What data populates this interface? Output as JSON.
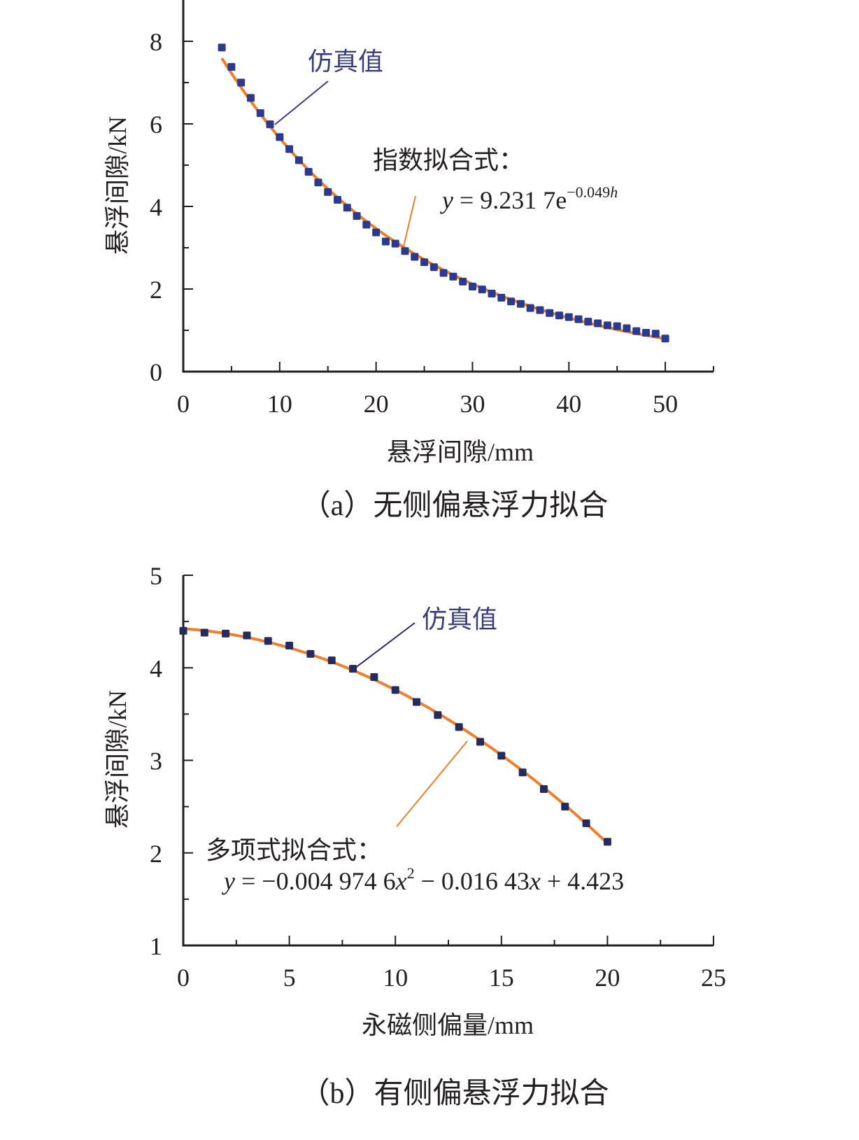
{
  "colors": {
    "marker": "#2b3a8c",
    "marker_b": "#262b5e",
    "fit_line": "#f07f2d",
    "axis": "#231f20",
    "annotation_text": "#3a3f7a"
  },
  "chart_data": [
    {
      "id": "a",
      "type": "scatter",
      "caption": "（a）无侧偏悬浮力拟合",
      "xlabel": "悬浮间隙/mm",
      "ylabel": "悬浮间隙/kN",
      "xlim": [
        0,
        55
      ],
      "ylim": [
        0,
        9
      ],
      "xticks": [
        0,
        10,
        20,
        30,
        40,
        50
      ],
      "xticks_minor": [
        5,
        15,
        25,
        35,
        45,
        55
      ],
      "yticks": [
        0,
        2,
        4,
        6,
        8
      ],
      "yticks_minor": [
        1,
        3,
        5,
        7
      ],
      "grid": false,
      "series": [
        {
          "name": "仿真值",
          "kind": "markers",
          "x": [
            4,
            5,
            6,
            7,
            8,
            9,
            10,
            11,
            12,
            13,
            14,
            15,
            16,
            17,
            18,
            19,
            20,
            21,
            22,
            23,
            24,
            25,
            26,
            27,
            28,
            29,
            30,
            31,
            32,
            33,
            34,
            35,
            36,
            37,
            38,
            39,
            40,
            41,
            42,
            43,
            44,
            45,
            46,
            47,
            48,
            49,
            50
          ],
          "y": [
            7.85,
            7.38,
            7.0,
            6.63,
            6.26,
            5.99,
            5.68,
            5.39,
            5.12,
            4.84,
            4.58,
            4.35,
            4.16,
            3.97,
            3.77,
            3.56,
            3.37,
            3.15,
            3.1,
            2.92,
            2.78,
            2.65,
            2.53,
            2.39,
            2.3,
            2.18,
            2.06,
            1.99,
            1.89,
            1.79,
            1.7,
            1.64,
            1.54,
            1.49,
            1.42,
            1.36,
            1.32,
            1.27,
            1.21,
            1.17,
            1.12,
            1.1,
            1.05,
            0.98,
            0.94,
            0.92,
            0.8
          ]
        },
        {
          "name": "指数拟合式",
          "kind": "fit",
          "formula": "exp",
          "a": 9.2317,
          "b": -0.049,
          "x_range": [
            4,
            50
          ]
        }
      ],
      "annotations": {
        "sim_label": "仿真值",
        "fit_label": "指数拟合式：",
        "equation": {
          "lhs": "y",
          "eq": " = 9.231 7e",
          "exp_num": "−0.049",
          "exp_var": "h"
        }
      }
    },
    {
      "id": "b",
      "type": "scatter",
      "caption": "（b）有侧偏悬浮力拟合",
      "xlabel": "永磁侧偏量/mm",
      "ylabel": "悬浮间隙/kN",
      "xlim": [
        0,
        25
      ],
      "ylim": [
        1,
        5
      ],
      "xticks": [
        0,
        5,
        10,
        15,
        20,
        25
      ],
      "xticks_minor": [
        2.5,
        7.5,
        12.5,
        17.5,
        22.5
      ],
      "yticks": [
        1,
        2,
        3,
        4,
        5
      ],
      "yticks_minor": [
        1.5,
        2.5,
        3.5,
        4.5
      ],
      "grid": false,
      "series": [
        {
          "name": "仿真值",
          "kind": "markers",
          "x": [
            0,
            1,
            2,
            3,
            4,
            5,
            6,
            7,
            8,
            9,
            10,
            11,
            12,
            13,
            14,
            15,
            16,
            17,
            18,
            19,
            20
          ],
          "y": [
            4.4,
            4.38,
            4.37,
            4.35,
            4.29,
            4.24,
            4.15,
            4.08,
            3.99,
            3.9,
            3.76,
            3.63,
            3.49,
            3.36,
            3.2,
            3.05,
            2.87,
            2.69,
            2.5,
            2.32,
            2.12
          ]
        },
        {
          "name": "多项式拟合式",
          "kind": "fit",
          "formula": "poly2",
          "c2": -0.0049746,
          "c1": -0.01643,
          "c0": 4.423,
          "x_range": [
            0,
            20
          ]
        }
      ],
      "annotations": {
        "sim_label": "仿真值",
        "fit_label": "多项式拟合式：",
        "equation": {
          "lhs": "y",
          "part1": " = −0.004 974 6",
          "var1": "x",
          "sup1": "2",
          "part2": " − 0.016 43",
          "var2": "x",
          "part3": " + 4.423"
        }
      }
    }
  ]
}
